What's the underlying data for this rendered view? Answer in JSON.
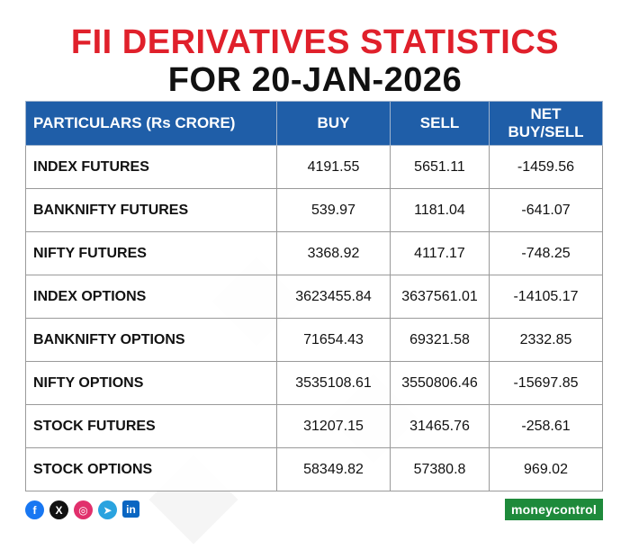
{
  "title": {
    "line1": "FII DERIVATIVES STATISTICS",
    "line2": "FOR 20-JAN-2026"
  },
  "table": {
    "headers": [
      "PARTICULARS (Rs CRORE)",
      "BUY",
      "SELL",
      "NET BUY/SELL"
    ],
    "rows": [
      [
        "INDEX FUTURES",
        "4191.55",
        "5651.11",
        "-1459.56"
      ],
      [
        "BANKNIFTY FUTURES",
        "539.97",
        "1181.04",
        "-641.07"
      ],
      [
        "NIFTY FUTURES",
        "3368.92",
        "4117.17",
        "-748.25"
      ],
      [
        "INDEX OPTIONS",
        "3623455.84",
        "3637561.01",
        "-14105.17"
      ],
      [
        "BANKNIFTY OPTIONS",
        "71654.43",
        "69321.58",
        "2332.85"
      ],
      [
        "NIFTY OPTIONS",
        "3535108.61",
        "3550806.46",
        "-15697.85"
      ],
      [
        "STOCK FUTURES",
        "31207.15",
        "31465.76",
        "-258.61"
      ],
      [
        "STOCK OPTIONS",
        "58349.82",
        "57380.8",
        "969.02"
      ]
    ]
  },
  "social": {
    "facebook": "f",
    "x": "X",
    "instagram": "◎",
    "telegram": "➤",
    "linkedin": "in"
  },
  "brand": {
    "logo_text": "moneycontrol"
  },
  "colors": {
    "title_red": "#e0202b",
    "header_blue": "#1f5ea8",
    "logo_green": "#1e8a3b"
  }
}
